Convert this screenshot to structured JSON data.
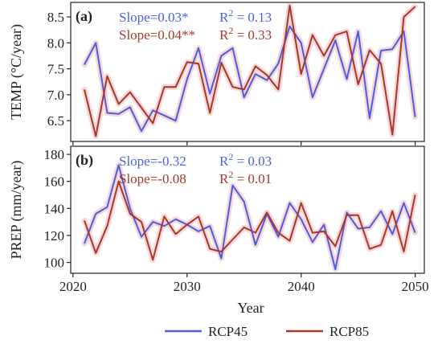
{
  "colors": {
    "rcp45": "#4a5fe0",
    "rcp85": "#a33a2a",
    "halo": "#f6cfd2",
    "axis": "#222222",
    "frame": "#333333"
  },
  "xlabel": "Year",
  "legend": {
    "position": "bottom-center",
    "items": [
      "RCP45",
      "RCP85"
    ]
  },
  "chart_data": [
    {
      "type": "line",
      "panel_label": "(a)",
      "ylabel": "TEMP (°C/year)",
      "xlim": [
        2019.8,
        2050.8
      ],
      "ylim": [
        6.1,
        8.78
      ],
      "x_ticks": [
        2020,
        2030,
        2040,
        2050
      ],
      "y_ticks": [
        6.5,
        7.0,
        7.5,
        8.0,
        8.5
      ],
      "y_tick_labels": [
        "6.5",
        "7.0",
        "7.5",
        "8.0",
        "8.5"
      ],
      "x": [
        2021,
        2022,
        2023,
        2024,
        2025,
        2026,
        2027,
        2028,
        2029,
        2030,
        2031,
        2032,
        2033,
        2034,
        2035,
        2036,
        2037,
        2038,
        2039,
        2040,
        2041,
        2042,
        2043,
        2044,
        2045,
        2046,
        2047,
        2048,
        2049,
        2050
      ],
      "series": [
        {
          "name": "RCP45",
          "values": [
            7.58,
            8.0,
            6.65,
            6.63,
            6.76,
            6.3,
            6.7,
            6.6,
            6.5,
            7.3,
            7.9,
            7.02,
            7.75,
            7.9,
            6.95,
            7.4,
            7.28,
            7.6,
            8.32,
            8.0,
            6.95,
            7.5,
            8.05,
            7.3,
            8.22,
            6.55,
            7.85,
            7.88,
            8.22,
            6.57
          ]
        },
        {
          "name": "RCP85",
          "values": [
            7.1,
            6.2,
            7.36,
            6.82,
            7.05,
            6.75,
            6.45,
            7.15,
            7.15,
            7.63,
            7.6,
            6.65,
            7.62,
            7.15,
            7.1,
            7.55,
            7.38,
            7.1,
            8.72,
            7.4,
            8.15,
            7.75,
            8.15,
            8.22,
            7.2,
            7.86,
            7.6,
            6.23,
            8.5,
            8.7
          ]
        }
      ],
      "annotations": [
        {
          "series": "RCP45",
          "slope": "Slope=0.03*",
          "r2_prefix": "R",
          "r2_sup": "2",
          "r2_value": " = 0.13"
        },
        {
          "series": "RCP85",
          "slope": "Slope=0.04**",
          "r2_prefix": "R",
          "r2_sup": "2",
          "r2_value": " = 0.33"
        }
      ]
    },
    {
      "type": "line",
      "panel_label": "(b)",
      "ylabel": "PREP (mm/year)",
      "xlim": [
        2019.8,
        2050.8
      ],
      "ylim": [
        92,
        186
      ],
      "x_ticks": [
        2020,
        2030,
        2040,
        2050
      ],
      "x_tick_labels": [
        "2020",
        "2030",
        "2040",
        "2050"
      ],
      "y_ticks": [
        100,
        120,
        140,
        160,
        180
      ],
      "y_tick_labels": [
        "100",
        "120",
        "140",
        "160",
        "180"
      ],
      "x": [
        2021,
        2022,
        2023,
        2024,
        2025,
        2026,
        2027,
        2028,
        2029,
        2030,
        2031,
        2032,
        2033,
        2034,
        2035,
        2036,
        2037,
        2038,
        2039,
        2040,
        2041,
        2042,
        2043,
        2044,
        2045,
        2046,
        2047,
        2048,
        2049,
        2050
      ],
      "series": [
        {
          "name": "RCP45",
          "values": [
            114,
            136,
            141,
            172,
            140,
            119,
            130,
            127,
            132,
            128,
            123,
            127,
            103,
            157,
            145,
            113,
            136,
            119,
            144,
            132,
            115,
            128,
            95,
            137,
            125,
            126,
            138,
            121,
            144,
            122
          ]
        },
        {
          "name": "RCP85",
          "values": [
            131,
            107,
            127,
            160,
            136,
            130,
            102,
            134,
            121,
            128,
            134,
            110,
            108,
            117,
            126,
            122,
            137,
            122,
            116,
            144,
            122,
            123,
            112,
            135,
            135,
            110,
            113,
            138,
            108,
            150
          ]
        }
      ],
      "annotations": [
        {
          "series": "RCP45",
          "slope": "Slope=-0.32",
          "r2_prefix": "R",
          "r2_sup": "2",
          "r2_value": " = 0.03"
        },
        {
          "series": "RCP85",
          "slope": "Slope=-0.08",
          "r2_prefix": "R",
          "r2_sup": "2",
          "r2_value": " = 0.01"
        }
      ]
    }
  ]
}
